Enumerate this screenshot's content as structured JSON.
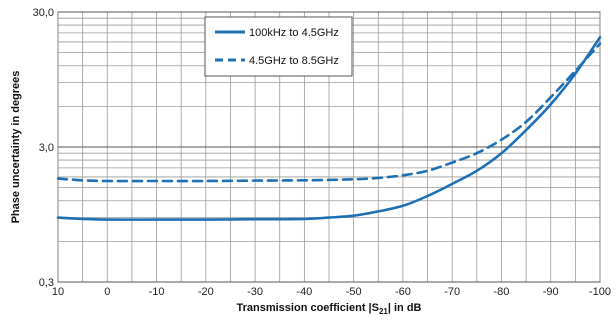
{
  "chart_data": {
    "type": "line",
    "title": "",
    "xlabel": "Transmission coefficient |S21| in dB",
    "xlabel_parts": {
      "prefix": "Transmission coefficient |S",
      "sub": "21",
      "suffix": "| in dB"
    },
    "ylabel": "Phase uncertainty in degrees",
    "x_ticks": [
      "10",
      "0",
      "-10",
      "-20",
      "-30",
      "-40",
      "-50",
      "-60",
      "-70",
      "-80",
      "-90",
      "-100"
    ],
    "y_ticks": [
      "30,0",
      "3,0",
      "0,3"
    ],
    "xlim": [
      10,
      -100
    ],
    "ylim": [
      0.3,
      30
    ],
    "y_scale": "log",
    "grid": true,
    "legend_position": "top-center",
    "series": [
      {
        "name": "100kHz to 4.5GHz",
        "style": "solid",
        "color": "#1f6fb5",
        "x": [
          10,
          5,
          0,
          -10,
          -20,
          -30,
          -40,
          -45,
          -50,
          -55,
          -60,
          -65,
          -70,
          -75,
          -80,
          -85,
          -90,
          -95,
          -100
        ],
        "y": [
          0.9,
          0.88,
          0.87,
          0.87,
          0.87,
          0.875,
          0.88,
          0.9,
          0.93,
          1.0,
          1.1,
          1.3,
          1.6,
          2.0,
          2.7,
          4.0,
          6.2,
          10.5,
          19.5
        ]
      },
      {
        "name": "4.5GHz to 8.5GHz",
        "style": "dashed",
        "color": "#1f6fb5",
        "x": [
          10,
          5,
          0,
          -10,
          -20,
          -30,
          -40,
          -50,
          -55,
          -60,
          -65,
          -70,
          -75,
          -80,
          -85,
          -90,
          -95,
          -100
        ],
        "y": [
          1.75,
          1.7,
          1.68,
          1.68,
          1.68,
          1.69,
          1.7,
          1.73,
          1.77,
          1.85,
          2.0,
          2.3,
          2.7,
          3.4,
          4.6,
          7.0,
          11.0,
          17.5
        ]
      }
    ]
  }
}
